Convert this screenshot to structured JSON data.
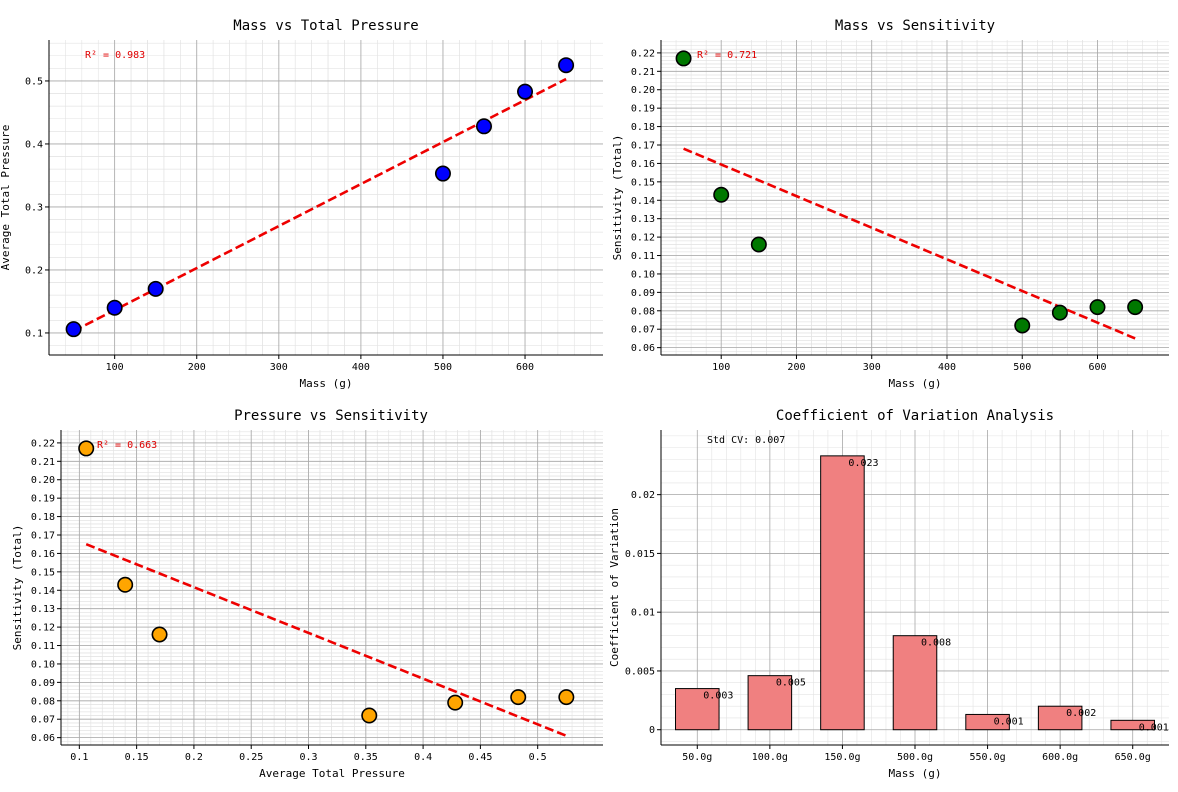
{
  "chart_data": [
    {
      "type": "scatter",
      "title": "Mass vs Total Pressure",
      "xlabel": "Mass (g)",
      "ylabel": "Average Total Pressure",
      "xlim": [
        20,
        695
      ],
      "ylim": [
        0.065,
        0.565
      ],
      "xticks": [
        100,
        200,
        300,
        400,
        500,
        600
      ],
      "xtick_labels": [
        "100",
        "200",
        "300",
        "400",
        "500",
        "600"
      ],
      "yticks": [
        0.1,
        0.2,
        0.3,
        0.4,
        0.5
      ],
      "ytick_labels": [
        "0.1",
        "0.2",
        "0.3",
        "0.4",
        "0.5"
      ],
      "grid": true,
      "x": [
        50,
        100,
        150,
        500,
        550,
        600,
        650
      ],
      "y": [
        0.106,
        0.14,
        0.17,
        0.353,
        0.428,
        0.483,
        0.525
      ],
      "color": "#0000ff",
      "trendline": {
        "x": [
          50,
          650
        ],
        "y": [
          0.103,
          0.503
        ],
        "color": "#ee0000"
      },
      "annotation": "R² = 0.983"
    },
    {
      "type": "scatter",
      "title": "Mass vs Sensitivity",
      "xlabel": "Mass (g)",
      "ylabel": "Sensitivity (Total)",
      "xlim": [
        20,
        695
      ],
      "ylim": [
        0.056,
        0.227
      ],
      "xticks": [
        100,
        200,
        300,
        400,
        500,
        600
      ],
      "xtick_labels": [
        "100",
        "200",
        "300",
        "400",
        "500",
        "600"
      ],
      "yticks": [
        0.06,
        0.07,
        0.08,
        0.09,
        0.1,
        0.11,
        0.12,
        0.13,
        0.14,
        0.15,
        0.16,
        0.17,
        0.18,
        0.19,
        0.2,
        0.21,
        0.22
      ],
      "ytick_labels": [
        "0.06",
        "0.07",
        "0.08",
        "0.09",
        "0.10",
        "0.11",
        "0.12",
        "0.13",
        "0.14",
        "0.15",
        "0.16",
        "0.17",
        "0.18",
        "0.19",
        "0.20",
        "0.21",
        "0.22"
      ],
      "grid": true,
      "x": [
        50,
        100,
        150,
        500,
        550,
        600,
        650
      ],
      "y": [
        0.217,
        0.143,
        0.116,
        0.072,
        0.079,
        0.082,
        0.082
      ],
      "color": "#007800",
      "trendline": {
        "x": [
          50,
          650
        ],
        "y": [
          0.168,
          0.065
        ],
        "color": "#ee0000"
      },
      "annotation": "R² = 0.721"
    },
    {
      "type": "scatter",
      "title": "Pressure vs Sensitivity",
      "xlabel": "Average Total Pressure",
      "ylabel": "Sensitivity (Total)",
      "xlim": [
        0.084,
        0.557
      ],
      "ylim": [
        0.056,
        0.227
      ],
      "xticks": [
        0.1,
        0.15,
        0.2,
        0.25,
        0.3,
        0.35,
        0.4,
        0.45,
        0.5
      ],
      "xtick_labels": [
        "0.1",
        "0.15",
        "0.2",
        "0.25",
        "0.3",
        "0.35",
        "0.4",
        "0.45",
        "0.5"
      ],
      "yticks": [
        0.06,
        0.07,
        0.08,
        0.09,
        0.1,
        0.11,
        0.12,
        0.13,
        0.14,
        0.15,
        0.16,
        0.17,
        0.18,
        0.19,
        0.2,
        0.21,
        0.22
      ],
      "ytick_labels": [
        "0.06",
        "0.07",
        "0.08",
        "0.09",
        "0.10",
        "0.11",
        "0.12",
        "0.13",
        "0.14",
        "0.15",
        "0.16",
        "0.17",
        "0.18",
        "0.19",
        "0.20",
        "0.21",
        "0.22"
      ],
      "grid": true,
      "x": [
        0.106,
        0.14,
        0.17,
        0.353,
        0.428,
        0.483,
        0.525
      ],
      "y": [
        0.217,
        0.143,
        0.116,
        0.072,
        0.079,
        0.082,
        0.082
      ],
      "color": "#ffa500",
      "trendline": {
        "x": [
          0.106,
          0.525
        ],
        "y": [
          0.165,
          0.061
        ],
        "color": "#ee0000"
      },
      "annotation": "R² = 0.663"
    },
    {
      "type": "bar",
      "title": "Coefficient of Variation Analysis",
      "xlabel": "Mass (g)",
      "ylabel": "Coefficient of Variation",
      "categories": [
        "50.0g",
        "100.0g",
        "150.0g",
        "500.0g",
        "550.0g",
        "600.0g",
        "650.0g"
      ],
      "values": [
        0.0035,
        0.0046,
        0.0233,
        0.008,
        0.0013,
        0.002,
        0.0008
      ],
      "value_labels": [
        "0.003",
        "0.005",
        "0.023",
        "0.008",
        "0.001",
        "0.002",
        "0.001"
      ],
      "ylim": [
        -0.0013,
        0.0255
      ],
      "yticks": [
        0,
        0.005,
        0.01,
        0.015,
        0.02
      ],
      "ytick_labels": [
        "0",
        "0.005",
        "0.01",
        "0.015",
        "0.02"
      ],
      "grid": true,
      "color": "#f08080",
      "annotation": "Std CV: 0.007"
    }
  ]
}
